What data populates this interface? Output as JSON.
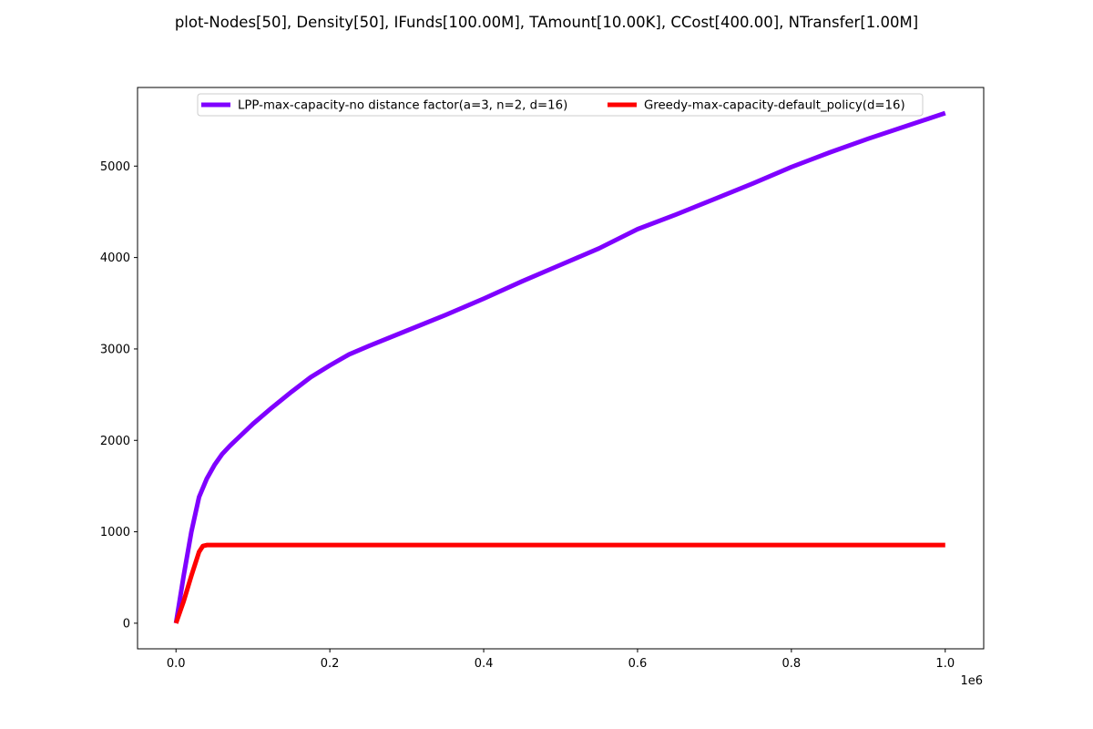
{
  "chart_data": {
    "type": "line",
    "title": "plot-Nodes[50], Density[50], IFunds[100.00M], TAmount[10.00K], CCost[400.00], NTransfer[1.00M]",
    "xlabel": "",
    "ylabel": "",
    "x_offset_text": "1e6",
    "xlim": [
      -50000,
      1050000
    ],
    "ylim": [
      -280,
      5860
    ],
    "xticks": [
      0,
      200000,
      400000,
      600000,
      800000,
      1000000
    ],
    "xtick_labels": [
      "0.0",
      "0.2",
      "0.4",
      "0.6",
      "0.8",
      "1.0"
    ],
    "yticks": [
      0,
      1000,
      2000,
      3000,
      4000,
      5000
    ],
    "ytick_labels": [
      "0",
      "1000",
      "2000",
      "3000",
      "4000",
      "5000"
    ],
    "grid": false,
    "legend_placement": "upper-center",
    "legend_columns": 2,
    "series": [
      {
        "name": "LPP-max-capacity-no distance factor(a=3, n=2, d=16)",
        "color": "#7f00ff",
        "x": [
          0,
          10000,
          20000,
          30000,
          40000,
          50000,
          60000,
          70000,
          80000,
          100000,
          125000,
          150000,
          175000,
          200000,
          225000,
          250000,
          300000,
          350000,
          400000,
          450000,
          500000,
          550000,
          600000,
          650000,
          700000,
          750000,
          800000,
          850000,
          900000,
          950000,
          1000000
        ],
        "y": [
          0,
          520,
          1000,
          1380,
          1580,
          1730,
          1850,
          1940,
          2020,
          2180,
          2360,
          2530,
          2690,
          2820,
          2940,
          3030,
          3200,
          3370,
          3550,
          3740,
          3920,
          4100,
          4310,
          4470,
          4640,
          4810,
          4990,
          5150,
          5300,
          5440,
          5580
        ]
      },
      {
        "name": "Greedy-max-capacity-default_policy(d=16)",
        "color": "#ff0000",
        "x": [
          0,
          10000,
          20000,
          30000,
          35000,
          40000,
          100000,
          200000,
          400000,
          600000,
          800000,
          1000000
        ],
        "y": [
          0,
          240,
          520,
          780,
          845,
          855,
          855,
          855,
          855,
          855,
          855,
          855
        ]
      }
    ]
  }
}
